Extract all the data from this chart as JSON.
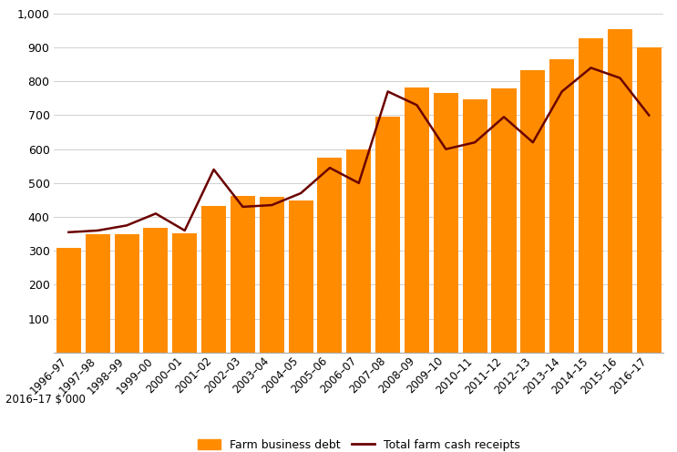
{
  "categories": [
    "1996–97",
    "1997–98",
    "1998–99",
    "1999–00",
    "2000–01",
    "2001–02",
    "2002–03",
    "2003–04",
    "2004–05",
    "2005–06",
    "2006–07",
    "2007–08",
    "2008–09",
    "2009–10",
    "2010–11",
    "2011–12",
    "2012–13",
    "2013–14",
    "2014–15",
    "2015–16",
    "2016–17"
  ],
  "bar_values": [
    310,
    350,
    348,
    368,
    352,
    432,
    462,
    460,
    448,
    575,
    600,
    695,
    783,
    765,
    748,
    778,
    833,
    865,
    928,
    953,
    900
  ],
  "line_values": [
    355,
    360,
    375,
    410,
    360,
    540,
    430,
    435,
    470,
    545,
    500,
    770,
    730,
    600,
    620,
    695,
    620,
    770,
    840,
    810,
    700
  ],
  "bar_color": "#FF8C00",
  "line_color": "#6B0000",
  "ylim": [
    0,
    1000
  ],
  "yticks": [
    100,
    200,
    300,
    400,
    500,
    600,
    700,
    800,
    900,
    1000
  ],
  "axis_label": "2016–17 $’000",
  "legend_bar_label": "Farm business debt",
  "legend_line_label": "Total farm cash receipts",
  "grid_color": "#d0d0d0"
}
